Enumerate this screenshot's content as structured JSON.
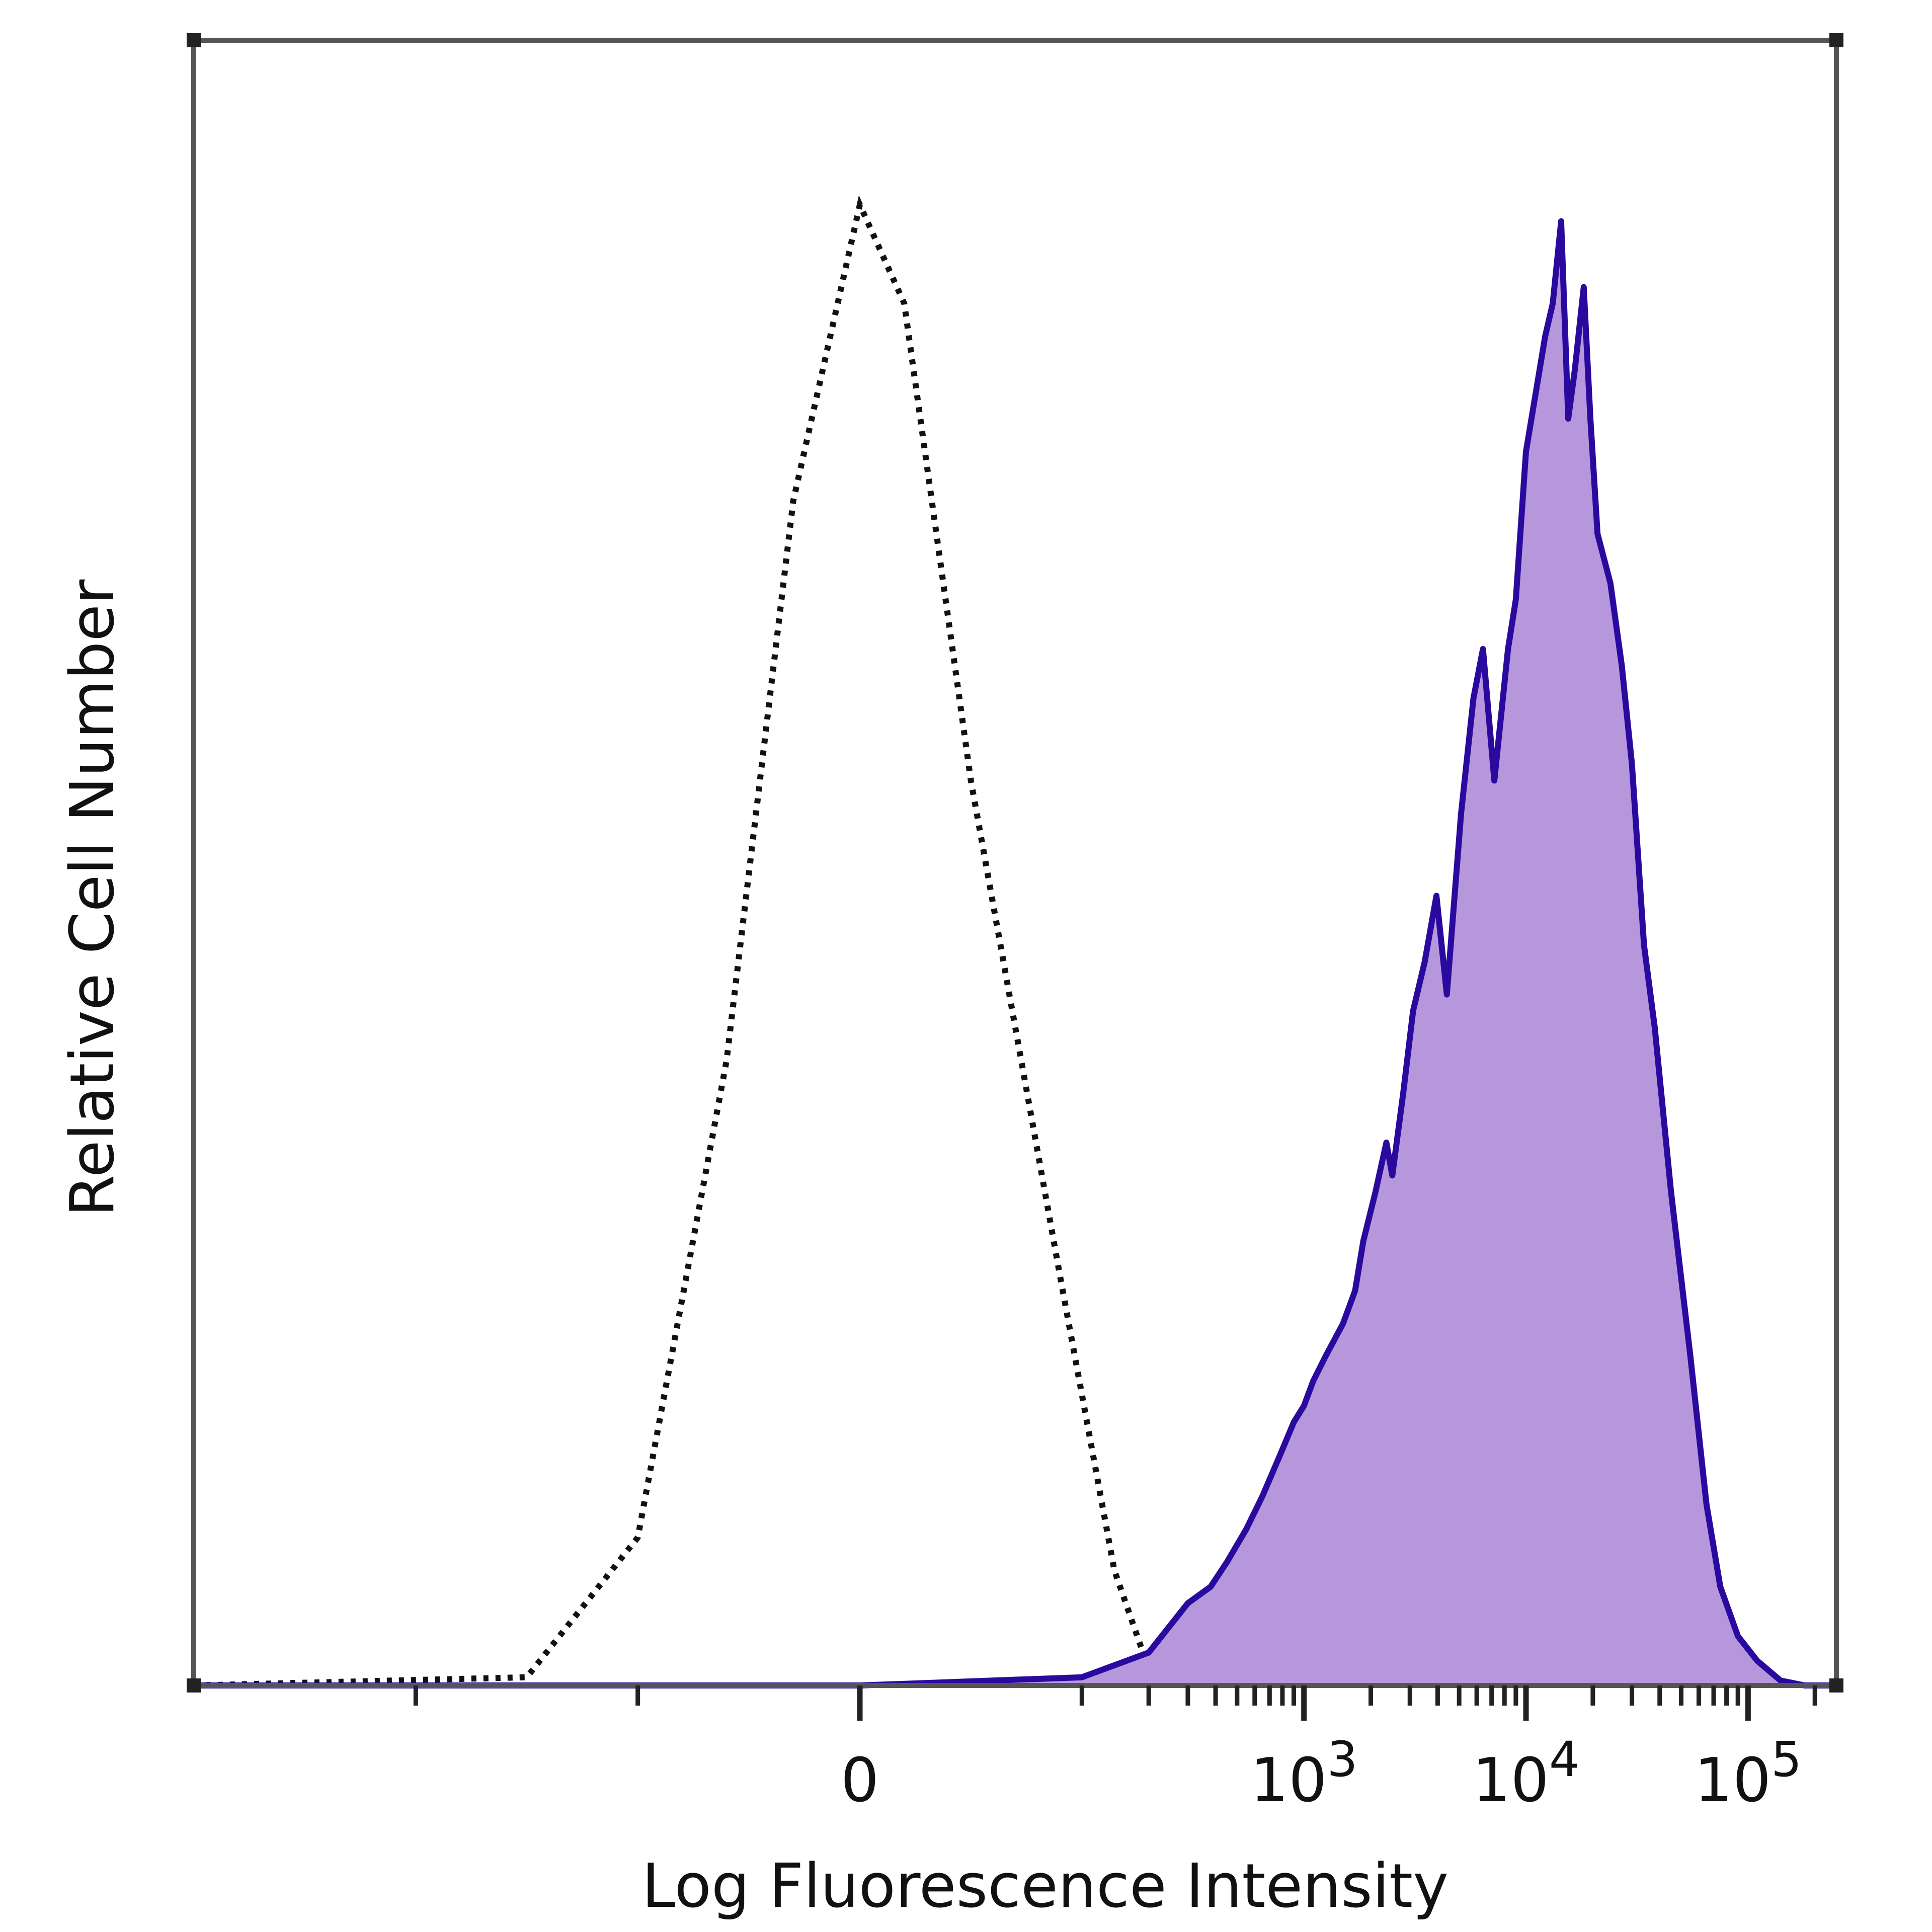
{
  "chart_data": {
    "type": "area",
    "xlabel": "Log Fluorescence Intensity",
    "ylabel": "Relative Cell Number",
    "x_scale": "biexponential",
    "xlim": [
      -300,
      250000
    ],
    "ylim": [
      0,
      100
    ],
    "x_ticks": [
      {
        "value": 0,
        "base": "0",
        "exponent": ""
      },
      {
        "value": 1000,
        "base": "10",
        "exponent": "3"
      },
      {
        "value": 10000,
        "base": "10",
        "exponent": "4"
      },
      {
        "value": 100000,
        "base": "10",
        "exponent": "5"
      }
    ],
    "colors": {
      "filled_fill": "#b797dc",
      "filled_line": "#2a0a9e",
      "control_line": "#111111",
      "frame": "#555555"
    },
    "series": [
      {
        "style": "dotted",
        "color": "#111111",
        "points": [
          [
            -300,
            0
          ],
          [
            -150,
            0.5
          ],
          [
            -100,
            9
          ],
          [
            -60,
            38
          ],
          [
            -30,
            72
          ],
          [
            0,
            90
          ],
          [
            20,
            84
          ],
          [
            50,
            55
          ],
          [
            90,
            25
          ],
          [
            140,
            7
          ],
          [
            200,
            1
          ],
          [
            260,
            0
          ]
        ]
      },
      {
        "style": "filled",
        "color": "#2a0a9e",
        "fill": "#b797dc",
        "points": [
          [
            -300,
            0
          ],
          [
            0,
            0
          ],
          [
            100,
            0.5
          ],
          [
            200,
            2
          ],
          [
            300,
            5
          ],
          [
            380,
            6
          ],
          [
            450,
            7.5
          ],
          [
            550,
            9.5
          ],
          [
            650,
            11.5
          ],
          [
            780,
            14
          ],
          [
            900,
            16
          ],
          [
            1000,
            17
          ],
          [
            1100,
            18.5
          ],
          [
            1250,
            20
          ],
          [
            1500,
            22
          ],
          [
            1700,
            24
          ],
          [
            1850,
            27
          ],
          [
            2100,
            30
          ],
          [
            2350,
            33
          ],
          [
            2500,
            31
          ],
          [
            2800,
            36
          ],
          [
            3100,
            41
          ],
          [
            3500,
            44
          ],
          [
            3950,
            48
          ],
          [
            4400,
            42
          ],
          [
            5100,
            53
          ],
          [
            5800,
            60
          ],
          [
            6400,
            63
          ],
          [
            7200,
            55
          ],
          [
            8300,
            63
          ],
          [
            9000,
            66
          ],
          [
            10000,
            75
          ],
          [
            11200,
            79
          ],
          [
            12200,
            82
          ],
          [
            13200,
            84
          ],
          [
            14400,
            89
          ],
          [
            15500,
            77
          ],
          [
            16600,
            80
          ],
          [
            18200,
            85
          ],
          [
            19500,
            77
          ],
          [
            21000,
            70
          ],
          [
            24000,
            67
          ],
          [
            27000,
            62
          ],
          [
            30000,
            56
          ],
          [
            34000,
            45
          ],
          [
            38000,
            40
          ],
          [
            45000,
            30
          ],
          [
            55000,
            20
          ],
          [
            65000,
            11
          ],
          [
            75000,
            6
          ],
          [
            90000,
            3
          ],
          [
            110000,
            1.5
          ],
          [
            140000,
            0.3
          ],
          [
            180000,
            0
          ],
          [
            250000,
            0
          ]
        ]
      }
    ]
  }
}
